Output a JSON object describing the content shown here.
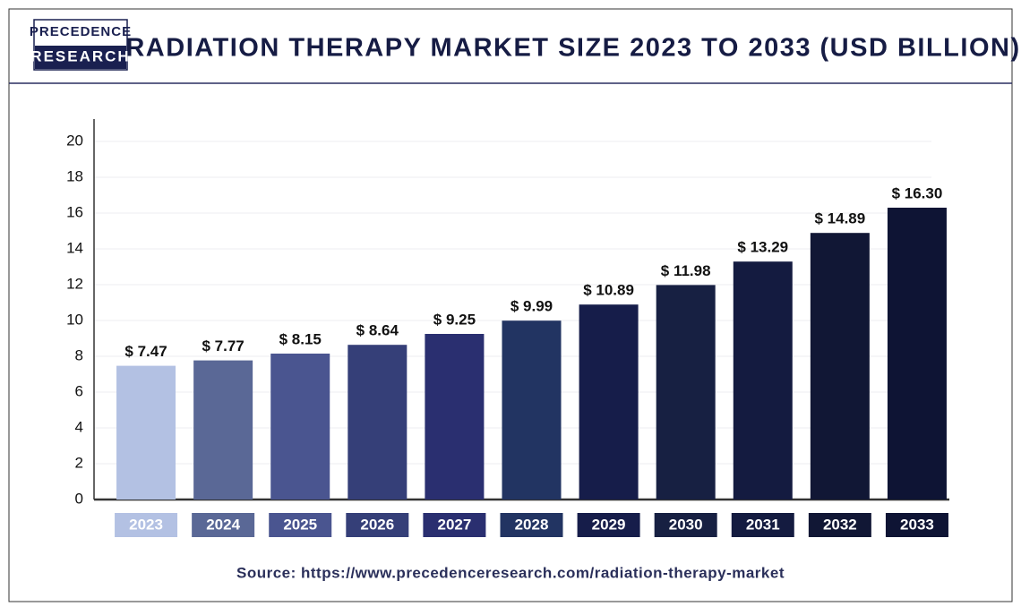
{
  "logo": {
    "line1": "PRECEDENCE",
    "line2": "RESEARCH"
  },
  "chart_data": {
    "type": "bar",
    "title": "RADIATION THERAPY MARKET SIZE 2023 TO 2033 (USD BILLION)",
    "categories": [
      "2023",
      "2024",
      "2025",
      "2026",
      "2027",
      "2028",
      "2029",
      "2030",
      "2031",
      "2032",
      "2033"
    ],
    "values": [
      7.47,
      7.77,
      8.15,
      8.64,
      9.25,
      9.99,
      10.89,
      11.98,
      13.29,
      14.89,
      16.3
    ],
    "value_labels": [
      "$ 7.47",
      "$ 7.77",
      "$ 8.15",
      "$ 8.64",
      "$ 9.25",
      "$ 9.99",
      "$ 10.89",
      "$ 11.98",
      "$ 13.29",
      "$ 14.89",
      "$ 16.30"
    ],
    "colors": [
      "#b3c1e3",
      "#5a6896",
      "#4a5590",
      "#353f78",
      "#2a2f70",
      "#223462",
      "#161d4a",
      "#172042",
      "#141b40",
      "#111735",
      "#0e1434"
    ],
    "ylim": [
      0,
      21
    ],
    "yticks": [
      0,
      2,
      4,
      6,
      8,
      10,
      12,
      14,
      16,
      18,
      20
    ],
    "grid": true,
    "source": "Source: https://www.precedenceresearch.com/radiation-therapy-market"
  }
}
